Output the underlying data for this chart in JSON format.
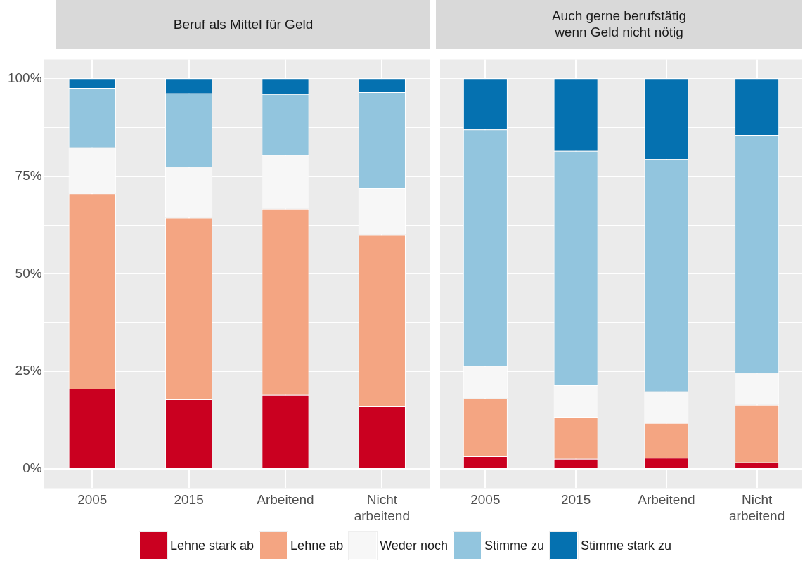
{
  "chart_data": [
    {
      "type": "bar",
      "title": "Beruf als Mittel für Geld",
      "stacked": true,
      "categories": [
        "2005",
        "2015",
        "Arbeitend",
        "Nicht\narbeitend"
      ],
      "ylim": [
        -5,
        105
      ],
      "yticks": [
        {
          "value": 0,
          "label": "0%"
        },
        {
          "value": 12.5,
          "label": null
        },
        {
          "value": 25,
          "label": "25%"
        },
        {
          "value": 37.5,
          "label": null
        },
        {
          "value": 50,
          "label": "50%"
        },
        {
          "value": 62.5,
          "label": null
        },
        {
          "value": 75,
          "label": "75%"
        },
        {
          "value": 87.5,
          "label": null
        },
        {
          "value": 100,
          "label": "100%"
        }
      ],
      "grid": true,
      "legend": "bottom",
      "series": [
        {
          "name": "Lehne stark ab",
          "color": "#ca0020",
          "values": [
            20.5,
            17.8,
            18.9,
            16.0
          ]
        },
        {
          "name": "Lehne ab",
          "color": "#f4a582",
          "values": [
            50.1,
            46.6,
            47.8,
            44.1
          ]
        },
        {
          "name": "Weder noch",
          "color": "#f7f7f7",
          "values": [
            11.8,
            13.0,
            13.7,
            11.8
          ]
        },
        {
          "name": "Stimme zu",
          "color": "#92c5de",
          "values": [
            15.3,
            18.9,
            15.7,
            24.7
          ]
        },
        {
          "name": "Stimme stark zu",
          "color": "#0571b0",
          "values": [
            2.3,
            3.7,
            3.9,
            3.4
          ]
        }
      ]
    },
    {
      "type": "bar",
      "title": "Auch gerne berufstätig\nwenn Geld nicht nötig",
      "stacked": true,
      "categories": [
        "2005",
        "2015",
        "Arbeitend",
        "Nicht\narbeitend"
      ],
      "ylim": [
        -5,
        105
      ],
      "yticks": [
        {
          "value": 0,
          "label": null
        },
        {
          "value": 12.5,
          "label": null
        },
        {
          "value": 25,
          "label": null
        },
        {
          "value": 37.5,
          "label": null
        },
        {
          "value": 50,
          "label": null
        },
        {
          "value": 62.5,
          "label": null
        },
        {
          "value": 75,
          "label": null
        },
        {
          "value": 87.5,
          "label": null
        },
        {
          "value": 100,
          "label": null
        }
      ],
      "grid": true,
      "legend": "bottom",
      "tick_labels": "x",
      "series": [
        {
          "name": "Lehne stark ab",
          "color": "#ca0020",
          "values": [
            3.2,
            2.5,
            2.8,
            1.6
          ]
        },
        {
          "name": "Lehne ab",
          "color": "#f4a582",
          "values": [
            14.8,
            10.8,
            8.9,
            14.8
          ]
        },
        {
          "name": "Weder noch",
          "color": "#f7f7f7",
          "values": [
            8.3,
            8.1,
            8.1,
            8.2
          ]
        },
        {
          "name": "Stimme zu",
          "color": "#92c5de",
          "values": [
            60.7,
            60.1,
            59.6,
            61.0
          ]
        },
        {
          "name": "Stimme stark zu",
          "color": "#0571b0",
          "values": [
            13.0,
            18.5,
            20.6,
            14.4
          ]
        }
      ]
    }
  ]
}
